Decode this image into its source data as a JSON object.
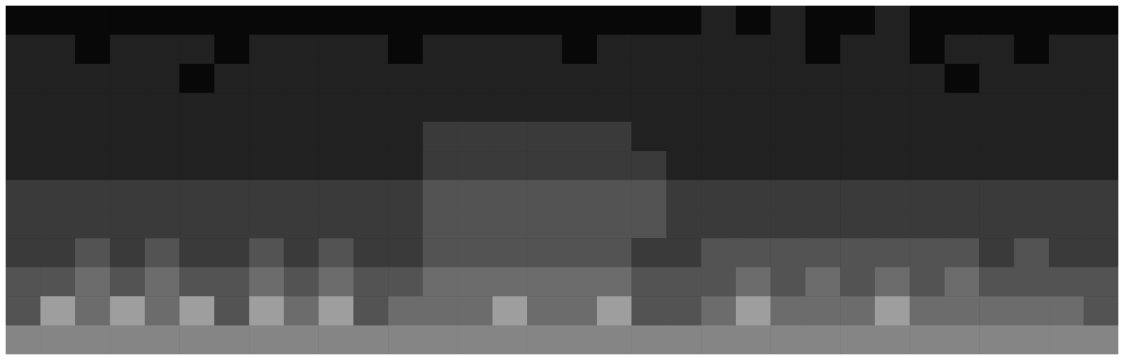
{
  "chart_data": {
    "type": "heatmap",
    "tick_labels": false,
    "cells": [
      [
        1,
        1,
        1,
        1,
        1,
        1,
        1,
        1,
        1,
        1,
        1,
        1,
        1,
        1,
        1,
        1,
        1,
        1,
        1,
        1,
        2,
        1,
        2,
        1,
        1,
        2,
        1,
        1,
        1,
        1,
        1,
        1
      ],
      [
        2,
        2,
        1,
        2,
        2,
        2,
        1,
        2,
        2,
        2,
        2,
        1,
        2,
        2,
        2,
        2,
        1,
        2,
        2,
        2,
        2,
        2,
        2,
        1,
        2,
        2,
        1,
        2,
        2,
        1,
        2,
        2
      ],
      [
        2,
        2,
        2,
        2,
        2,
        1,
        2,
        2,
        2,
        2,
        2,
        2,
        2,
        2,
        2,
        2,
        2,
        2,
        2,
        2,
        2,
        2,
        2,
        2,
        2,
        2,
        2,
        1,
        2,
        2,
        2,
        2
      ],
      [
        2,
        2,
        2,
        2,
        2,
        2,
        2,
        2,
        2,
        2,
        2,
        2,
        2,
        2,
        2,
        2,
        2,
        2,
        2,
        2,
        2,
        2,
        2,
        2,
        2,
        2,
        2,
        2,
        2,
        2,
        2,
        2
      ],
      [
        2,
        2,
        2,
        2,
        2,
        2,
        2,
        2,
        2,
        2,
        2,
        2,
        3,
        3,
        3,
        3,
        3,
        3,
        2,
        2,
        2,
        2,
        2,
        2,
        2,
        2,
        2,
        2,
        2,
        2,
        2,
        2
      ],
      [
        2,
        2,
        2,
        2,
        2,
        2,
        2,
        2,
        2,
        2,
        2,
        2,
        3,
        3,
        3,
        3,
        3,
        3,
        3,
        2,
        2,
        2,
        2,
        2,
        2,
        2,
        2,
        2,
        2,
        2,
        2,
        2
      ],
      [
        3,
        3,
        3,
        3,
        3,
        3,
        3,
        3,
        3,
        3,
        3,
        3,
        4,
        4,
        4,
        4,
        4,
        4,
        4,
        3,
        3,
        3,
        3,
        3,
        3,
        3,
        3,
        3,
        3,
        3,
        3,
        3
      ],
      [
        3,
        3,
        3,
        3,
        3,
        3,
        3,
        3,
        3,
        3,
        3,
        3,
        4,
        4,
        4,
        4,
        4,
        4,
        4,
        3,
        3,
        3,
        3,
        3,
        3,
        3,
        3,
        3,
        3,
        3,
        3,
        3
      ],
      [
        3,
        3,
        4,
        3,
        4,
        3,
        3,
        4,
        3,
        4,
        3,
        3,
        4,
        4,
        4,
        4,
        4,
        4,
        3,
        3,
        4,
        4,
        4,
        4,
        4,
        4,
        4,
        4,
        3,
        4,
        3,
        3
      ],
      [
        4,
        4,
        5,
        4,
        5,
        4,
        4,
        5,
        4,
        5,
        4,
        4,
        5,
        5,
        5,
        5,
        5,
        5,
        4,
        4,
        4,
        5,
        4,
        5,
        4,
        5,
        4,
        5,
        4,
        4,
        4,
        4
      ],
      [
        4,
        7,
        5,
        7,
        5,
        7,
        4,
        7,
        5,
        7,
        4,
        5,
        5,
        5,
        7,
        5,
        5,
        7,
        4,
        4,
        5,
        7,
        5,
        5,
        5,
        7,
        5,
        5,
        5,
        5,
        5,
        4
      ],
      [
        6,
        6,
        6,
        6,
        6,
        6,
        6,
        6,
        6,
        6,
        6,
        6,
        6,
        6,
        6,
        6,
        6,
        6,
        6,
        6,
        6,
        6,
        6,
        6,
        6,
        6,
        6,
        6,
        6,
        6,
        6,
        6
      ]
    ]
  }
}
